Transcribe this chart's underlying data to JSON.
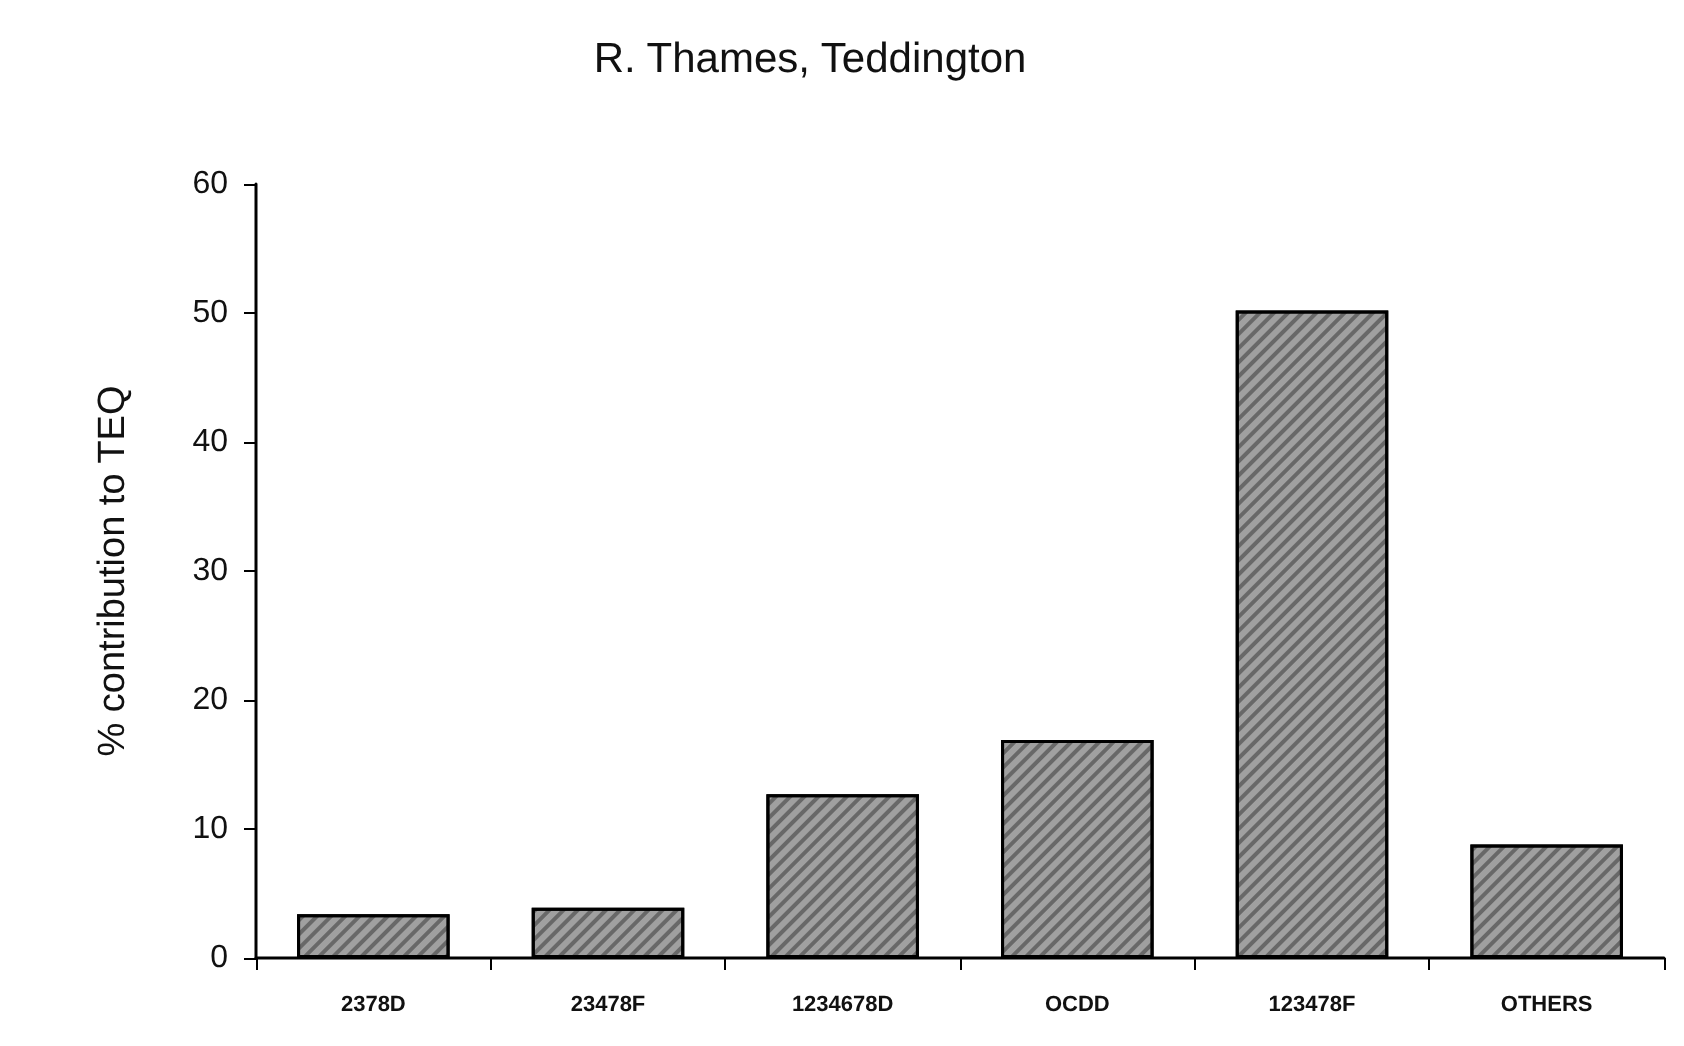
{
  "chart_data": {
    "type": "bar",
    "title": "R. Thames, Teddington",
    "ylabel": "% contribution to TEQ",
    "categories": [
      "2378D",
      "23478F",
      "1234678D",
      "OCDD",
      "123478F",
      "OTHERS"
    ],
    "values": [
      3.4,
      3.9,
      12.7,
      16.9,
      50.2,
      8.8
    ],
    "color": "#a0a0a0",
    "ylim": [
      0,
      60
    ],
    "yticks": [
      0,
      10,
      20,
      30,
      40,
      50,
      60
    ]
  }
}
